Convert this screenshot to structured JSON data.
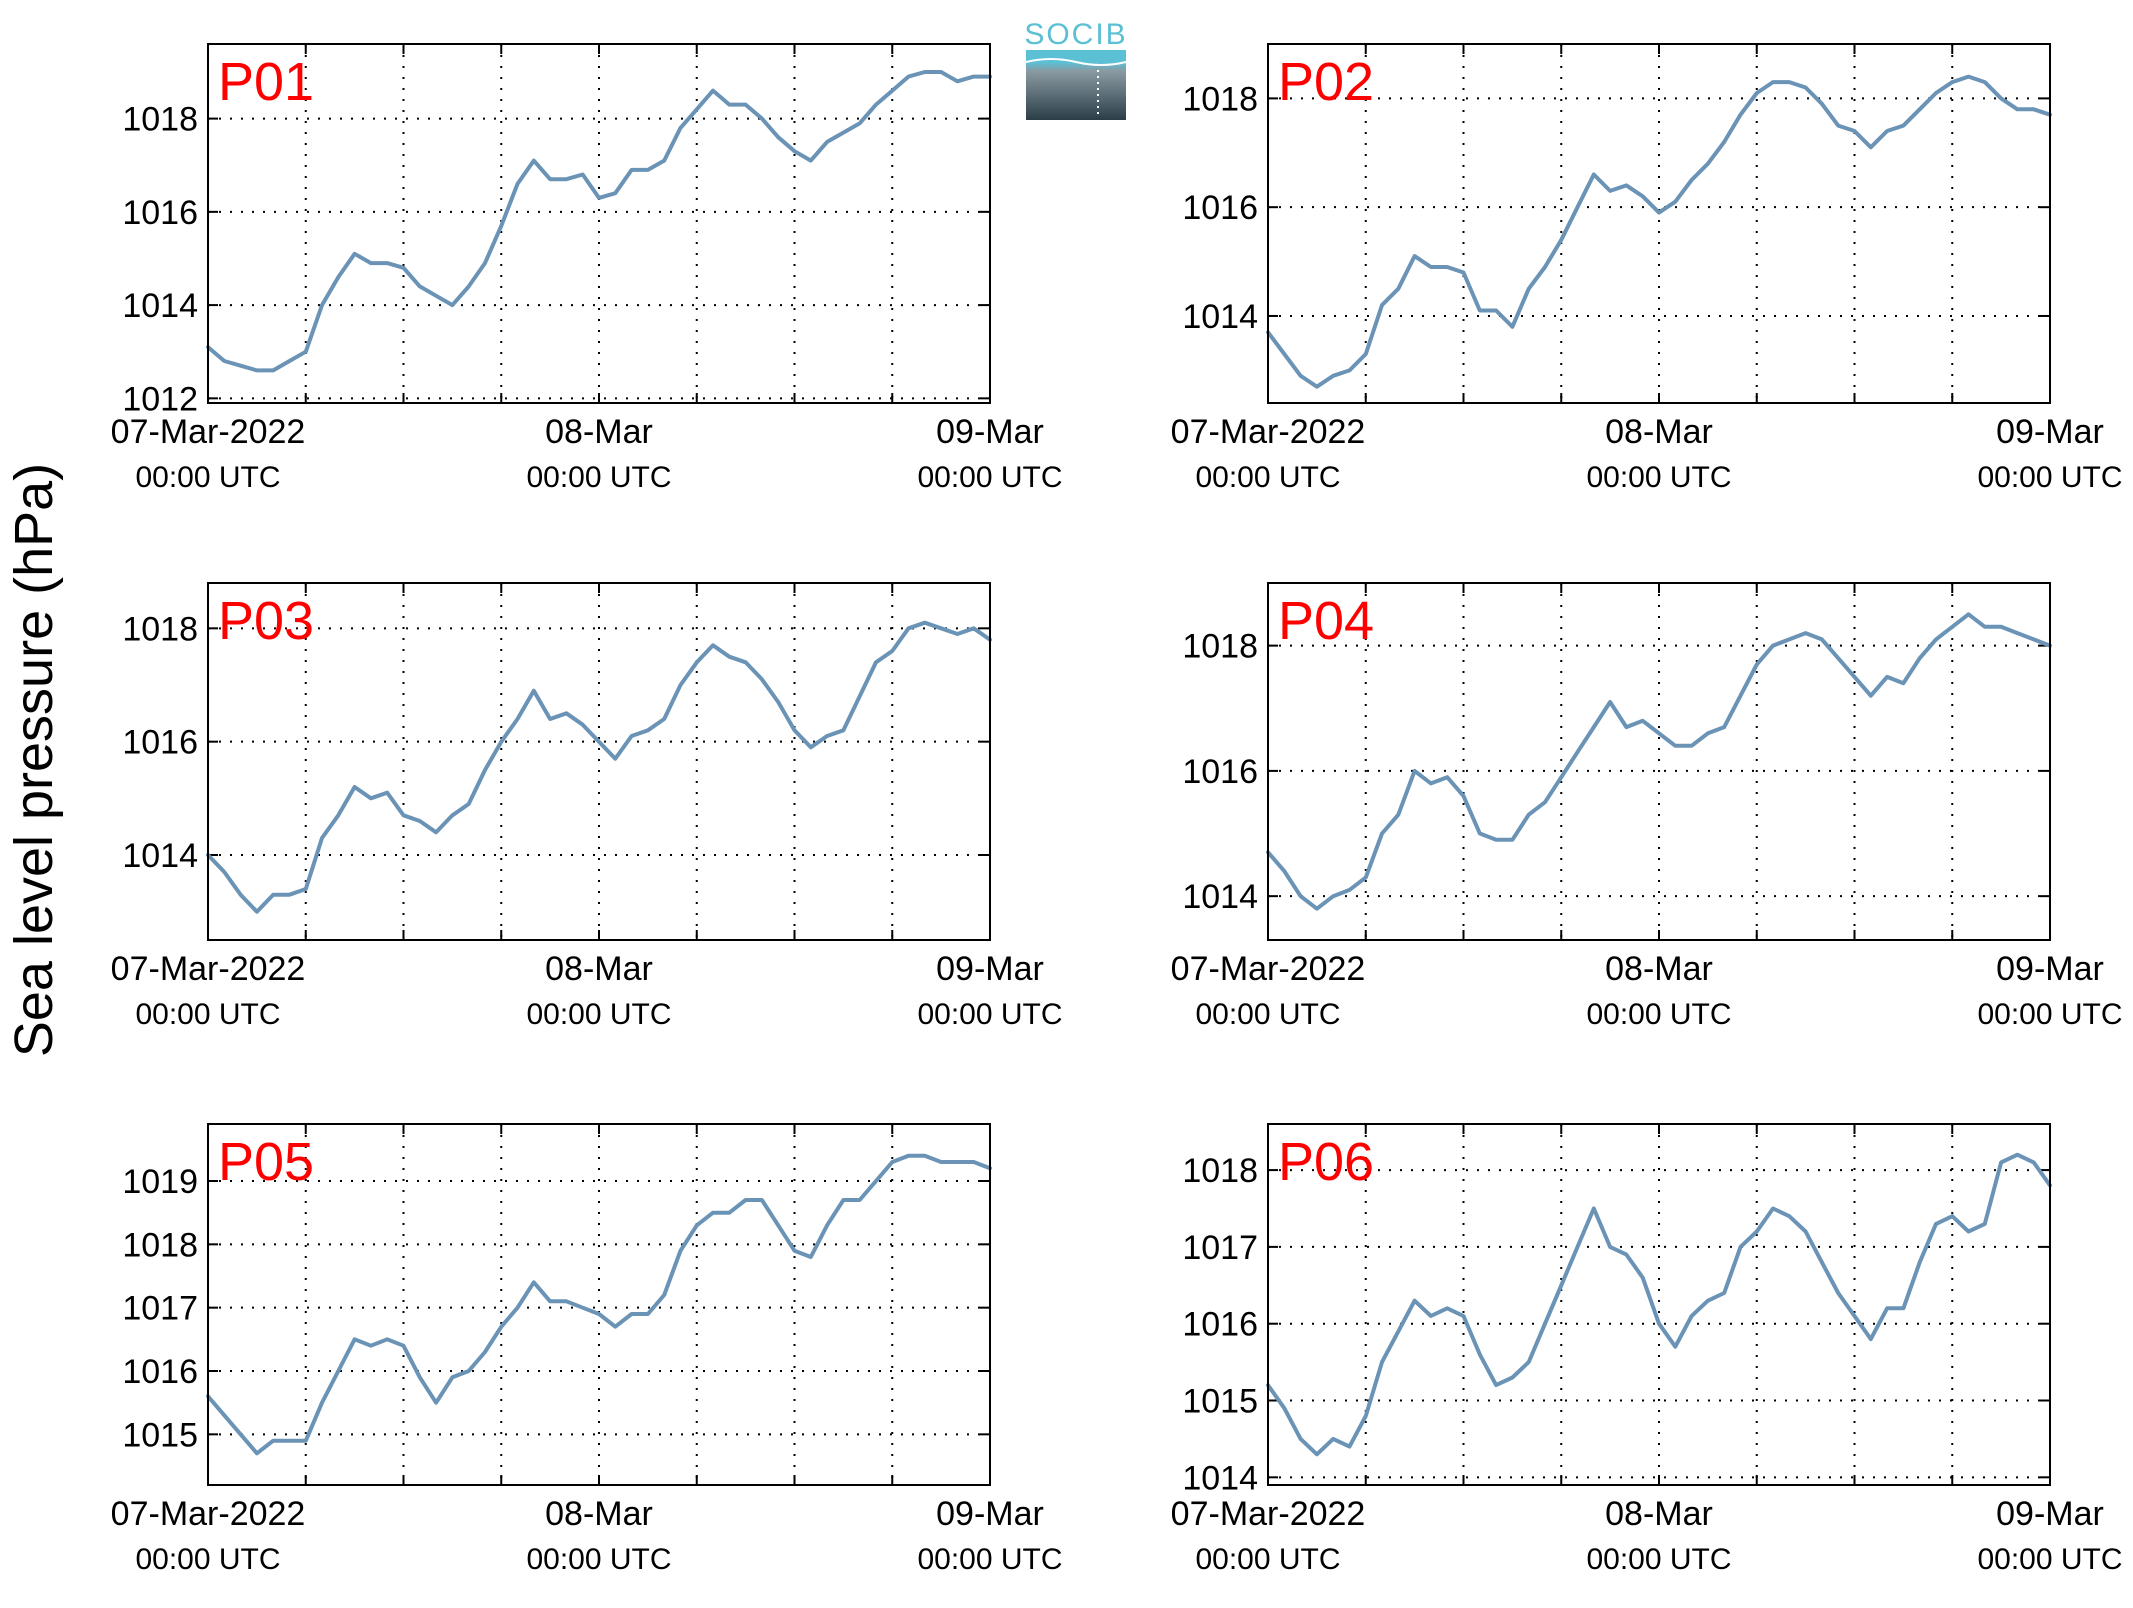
{
  "ylabel": "Sea level pressure (hPa)",
  "logo": {
    "text": "SOCIB",
    "colors": {
      "top": "#5cc0d4",
      "bottom": "#2b3e48"
    }
  },
  "colors": {
    "series": "#6a93b6",
    "panel_label": "#ff0000"
  },
  "x_axis": {
    "ticks": [
      {
        "date": "07-Mar-2022",
        "time": "00:00 UTC"
      },
      {
        "date": "08-Mar",
        "time": "00:00 UTC"
      },
      {
        "date": "09-Mar",
        "time": "00:00 UTC"
      }
    ],
    "range_hours": [
      0,
      48
    ],
    "minor_grid_every_hours": 6
  },
  "chart_data": [
    {
      "type": "line",
      "label": "P01",
      "xlim": [
        "2022-03-07T00:00",
        "2022-03-09T00:00"
      ],
      "ylim": [
        1011.9,
        1019.6
      ],
      "yticks": [
        1012,
        1014,
        1016,
        1018
      ],
      "grid": true,
      "series": [
        {
          "x_hours": [
            0,
            1,
            2,
            3,
            4,
            5,
            6,
            7,
            8,
            9,
            10,
            11,
            12,
            13,
            14,
            15,
            16,
            17,
            18,
            19,
            20,
            21,
            22,
            23,
            24,
            25,
            26,
            27,
            28,
            29,
            30,
            31,
            32,
            33,
            34,
            35,
            36,
            37,
            38,
            39,
            40,
            41,
            42,
            43,
            44,
            45,
            46,
            47,
            48
          ],
          "values": [
            1013.1,
            1012.8,
            1012.7,
            1012.6,
            1012.6,
            1012.8,
            1013.0,
            1014.0,
            1014.6,
            1015.1,
            1014.9,
            1014.9,
            1014.8,
            1014.4,
            1014.2,
            1014.0,
            1014.4,
            1014.9,
            1015.7,
            1016.6,
            1017.1,
            1016.7,
            1016.7,
            1016.8,
            1016.3,
            1016.4,
            1016.9,
            1016.9,
            1017.1,
            1017.8,
            1018.2,
            1018.6,
            1018.3,
            1018.3,
            1018.0,
            1017.6,
            1017.3,
            1017.1,
            1017.5,
            1017.7,
            1017.9,
            1018.3,
            1018.6,
            1018.9,
            1019.0,
            1019.0,
            1018.8,
            1018.9,
            1018.9
          ]
        }
      ]
    },
    {
      "type": "line",
      "label": "P02",
      "xlim": [
        "2022-03-07T00:00",
        "2022-03-09T00:00"
      ],
      "ylim": [
        1012.4,
        1019.0
      ],
      "yticks": [
        1014,
        1016,
        1018
      ],
      "grid": true,
      "series": [
        {
          "x_hours": [
            0,
            1,
            2,
            3,
            4,
            5,
            6,
            7,
            8,
            9,
            10,
            11,
            12,
            13,
            14,
            15,
            16,
            17,
            18,
            19,
            20,
            21,
            22,
            23,
            24,
            25,
            26,
            27,
            28,
            29,
            30,
            31,
            32,
            33,
            34,
            35,
            36,
            37,
            38,
            39,
            40,
            41,
            42,
            43,
            44,
            45,
            46,
            47,
            48
          ],
          "values": [
            1013.7,
            1013.3,
            1012.9,
            1012.7,
            1012.9,
            1013.0,
            1013.3,
            1014.2,
            1014.5,
            1015.1,
            1014.9,
            1014.9,
            1014.8,
            1014.1,
            1014.1,
            1013.8,
            1014.5,
            1014.9,
            1015.4,
            1016.0,
            1016.6,
            1016.3,
            1016.4,
            1016.2,
            1015.9,
            1016.1,
            1016.5,
            1016.8,
            1017.2,
            1017.7,
            1018.1,
            1018.3,
            1018.3,
            1018.2,
            1017.9,
            1017.5,
            1017.4,
            1017.1,
            1017.4,
            1017.5,
            1017.8,
            1018.1,
            1018.3,
            1018.4,
            1018.3,
            1018.0,
            1017.8,
            1017.8,
            1017.7
          ]
        }
      ]
    },
    {
      "type": "line",
      "label": "P03",
      "xlim": [
        "2022-03-07T00:00",
        "2022-03-09T00:00"
      ],
      "ylim": [
        1012.5,
        1018.8
      ],
      "yticks": [
        1014,
        1016,
        1018
      ],
      "grid": true,
      "series": [
        {
          "x_hours": [
            0,
            1,
            2,
            3,
            4,
            5,
            6,
            7,
            8,
            9,
            10,
            11,
            12,
            13,
            14,
            15,
            16,
            17,
            18,
            19,
            20,
            21,
            22,
            23,
            24,
            25,
            26,
            27,
            28,
            29,
            30,
            31,
            32,
            33,
            34,
            35,
            36,
            37,
            38,
            39,
            40,
            41,
            42,
            43,
            44,
            45,
            46,
            47,
            48
          ],
          "values": [
            1014.0,
            1013.7,
            1013.3,
            1013.0,
            1013.3,
            1013.3,
            1013.4,
            1014.3,
            1014.7,
            1015.2,
            1015.0,
            1015.1,
            1014.7,
            1014.6,
            1014.4,
            1014.7,
            1014.9,
            1015.5,
            1016.0,
            1016.4,
            1016.9,
            1016.4,
            1016.5,
            1016.3,
            1016.0,
            1015.7,
            1016.1,
            1016.2,
            1016.4,
            1017.0,
            1017.4,
            1017.7,
            1017.5,
            1017.4,
            1017.1,
            1016.7,
            1016.2,
            1015.9,
            1016.1,
            1016.2,
            1016.8,
            1017.4,
            1017.6,
            1018.0,
            1018.1,
            1018.0,
            1017.9,
            1018.0,
            1017.8
          ]
        }
      ]
    },
    {
      "type": "line",
      "label": "P04",
      "xlim": [
        "2022-03-07T00:00",
        "2022-03-09T00:00"
      ],
      "ylim": [
        1013.3,
        1019.0
      ],
      "yticks": [
        1014,
        1016,
        1018
      ],
      "grid": true,
      "series": [
        {
          "x_hours": [
            0,
            1,
            2,
            3,
            4,
            5,
            6,
            7,
            8,
            9,
            10,
            11,
            12,
            13,
            14,
            15,
            16,
            17,
            18,
            19,
            20,
            21,
            22,
            23,
            24,
            25,
            26,
            27,
            28,
            29,
            30,
            31,
            32,
            33,
            34,
            35,
            36,
            37,
            38,
            39,
            40,
            41,
            42,
            43,
            44,
            45,
            46,
            47,
            48
          ],
          "values": [
            1014.7,
            1014.4,
            1014.0,
            1013.8,
            1014.0,
            1014.1,
            1014.3,
            1015.0,
            1015.3,
            1016.0,
            1015.8,
            1015.9,
            1015.6,
            1015.0,
            1014.9,
            1014.9,
            1015.3,
            1015.5,
            1015.9,
            1016.3,
            1016.7,
            1017.1,
            1016.7,
            1016.8,
            1016.6,
            1016.4,
            1016.4,
            1016.6,
            1016.7,
            1017.2,
            1017.7,
            1018.0,
            1018.1,
            1018.2,
            1018.1,
            1017.8,
            1017.5,
            1017.2,
            1017.5,
            1017.4,
            1017.8,
            1018.1,
            1018.3,
            1018.5,
            1018.3,
            1018.3,
            1018.2,
            1018.1,
            1018.0
          ]
        }
      ]
    },
    {
      "type": "line",
      "label": "P05",
      "xlim": [
        "2022-03-07T00:00",
        "2022-03-09T00:00"
      ],
      "ylim": [
        1014.2,
        1019.9
      ],
      "yticks": [
        1015,
        1016,
        1017,
        1018,
        1019
      ],
      "grid": true,
      "series": [
        {
          "x_hours": [
            0,
            1,
            2,
            3,
            4,
            5,
            6,
            7,
            8,
            9,
            10,
            11,
            12,
            13,
            14,
            15,
            16,
            17,
            18,
            19,
            20,
            21,
            22,
            23,
            24,
            25,
            26,
            27,
            28,
            29,
            30,
            31,
            32,
            33,
            34,
            35,
            36,
            37,
            38,
            39,
            40,
            41,
            42,
            43,
            44,
            45,
            46,
            47,
            48
          ],
          "values": [
            1015.6,
            1015.3,
            1015.0,
            1014.7,
            1014.9,
            1014.9,
            1014.9,
            1015.5,
            1016.0,
            1016.5,
            1016.4,
            1016.5,
            1016.4,
            1015.9,
            1015.5,
            1015.9,
            1016.0,
            1016.3,
            1016.7,
            1017.0,
            1017.4,
            1017.1,
            1017.1,
            1017.0,
            1016.9,
            1016.7,
            1016.9,
            1016.9,
            1017.2,
            1017.9,
            1018.3,
            1018.5,
            1018.5,
            1018.7,
            1018.7,
            1018.3,
            1017.9,
            1017.8,
            1018.3,
            1018.7,
            1018.7,
            1019.0,
            1019.3,
            1019.4,
            1019.4,
            1019.3,
            1019.3,
            1019.3,
            1019.2
          ]
        }
      ]
    },
    {
      "type": "line",
      "label": "P06",
      "xlim": [
        "2022-03-07T00:00",
        "2022-03-09T00:00"
      ],
      "ylim": [
        1013.9,
        1018.6
      ],
      "yticks": [
        1014,
        1015,
        1016,
        1017,
        1018
      ],
      "grid": true,
      "series": [
        {
          "x_hours": [
            0,
            1,
            2,
            3,
            4,
            5,
            6,
            7,
            8,
            9,
            10,
            11,
            12,
            13,
            14,
            15,
            16,
            17,
            18,
            19,
            20,
            21,
            22,
            23,
            24,
            25,
            26,
            27,
            28,
            29,
            30,
            31,
            32,
            33,
            34,
            35,
            36,
            37,
            38,
            39,
            40,
            41,
            42,
            43,
            44,
            45,
            46,
            47,
            48
          ],
          "values": [
            1015.2,
            1014.9,
            1014.5,
            1014.3,
            1014.5,
            1014.4,
            1014.8,
            1015.5,
            1015.9,
            1016.3,
            1016.1,
            1016.2,
            1016.1,
            1015.6,
            1015.2,
            1015.3,
            1015.5,
            1016.0,
            1016.5,
            1017.0,
            1017.5,
            1017.0,
            1016.9,
            1016.6,
            1016.0,
            1015.7,
            1016.1,
            1016.3,
            1016.4,
            1017.0,
            1017.2,
            1017.5,
            1017.4,
            1017.2,
            1016.8,
            1016.4,
            1016.1,
            1015.8,
            1016.2,
            1016.2,
            1016.8,
            1017.3,
            1017.4,
            1017.2,
            1017.3,
            1018.1,
            1018.2,
            1018.1,
            1017.8
          ]
        }
      ]
    }
  ]
}
